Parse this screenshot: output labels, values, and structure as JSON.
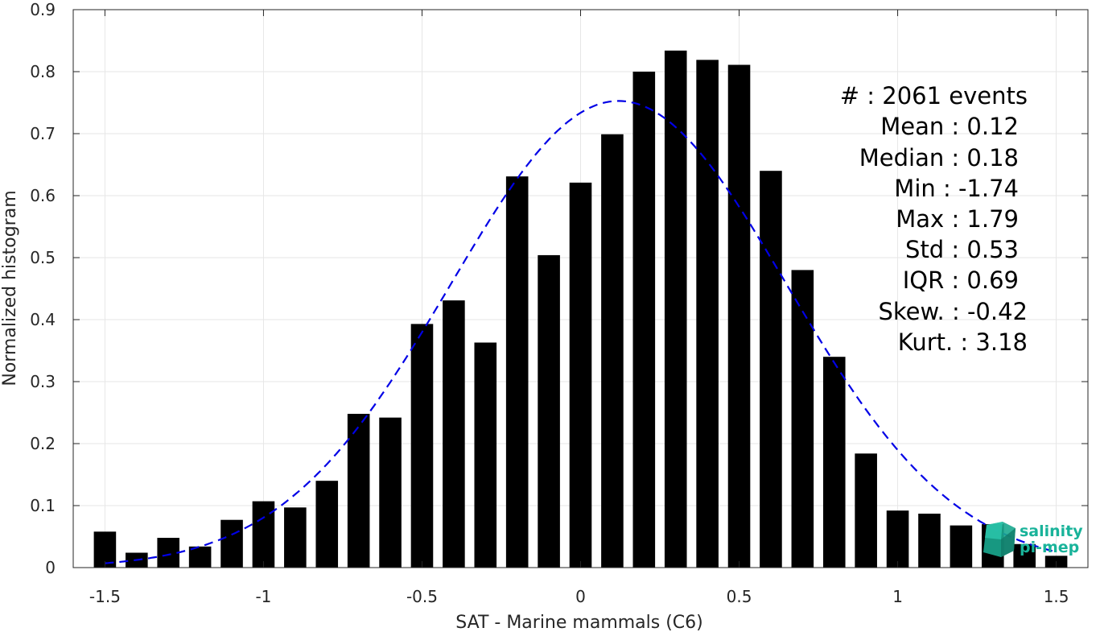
{
  "chart_data": {
    "type": "bar",
    "xlabel": "SAT - Marine mammals (C6)",
    "ylabel": "Normalized histogram",
    "xlim": [
      -1.6,
      1.6
    ],
    "ylim": [
      0,
      0.9
    ],
    "xticks": [
      -1.5,
      -1,
      -0.5,
      0,
      0.5,
      1,
      1.5
    ],
    "xtick_labels": [
      "-1.5",
      "-1",
      "-0.5",
      "0",
      "0.5",
      "1",
      "1.5"
    ],
    "yticks": [
      0,
      0.1,
      0.2,
      0.3,
      0.4,
      0.5,
      0.6,
      0.7,
      0.8,
      0.9
    ],
    "ytick_labels": [
      "0",
      "0.1",
      "0.2",
      "0.3",
      "0.4",
      "0.5",
      "0.6",
      "0.7",
      "0.8",
      "0.9"
    ],
    "grid": true,
    "bin_width": 0.1,
    "bins": {
      "centers": [
        -1.5,
        -1.4,
        -1.3,
        -1.2,
        -1.1,
        -1.0,
        -0.9,
        -0.8,
        -0.7,
        -0.6,
        -0.5,
        -0.4,
        -0.3,
        -0.2,
        -0.1,
        0.0,
        0.1,
        0.2,
        0.3,
        0.4,
        0.5,
        0.6,
        0.7,
        0.8,
        0.9,
        1.0,
        1.1,
        1.2,
        1.3,
        1.4,
        1.5
      ],
      "values": [
        0.058,
        0.024,
        0.048,
        0.034,
        0.077,
        0.107,
        0.097,
        0.14,
        0.248,
        0.242,
        0.393,
        0.431,
        0.363,
        0.631,
        0.504,
        0.621,
        0.699,
        0.8,
        0.834,
        0.819,
        0.811,
        0.64,
        0.48,
        0.34,
        0.184,
        0.092,
        0.087,
        0.068,
        0.07,
        0.038,
        0.019
      ],
      "color": "#000000"
    },
    "fit": {
      "type": "normal",
      "mean": 0.12,
      "std": 0.53,
      "style": "dashed",
      "color": "#0000e6"
    },
    "stats_text": [
      "#  : 2061 events",
      "Mean : 0.12",
      "Median : 0.18",
      "Min : -1.74",
      "Max : 1.79",
      "Std : 0.53",
      "IQR : 0.69",
      "Skew. : -0.42",
      "Kurt. : 3.18"
    ],
    "stats_placement": "top-right"
  },
  "logo": {
    "text_line1": "salinity",
    "text_line2": "pi-mep",
    "color": "#19b39a"
  }
}
